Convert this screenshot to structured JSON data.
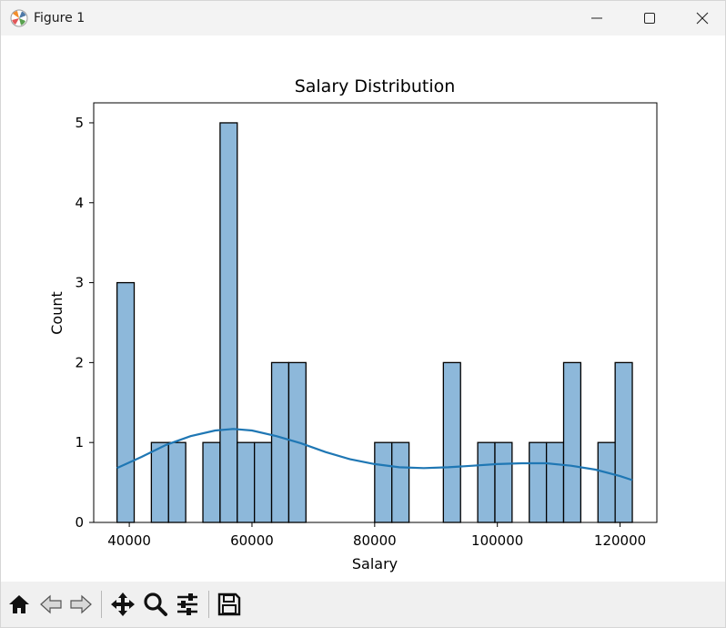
{
  "window": {
    "title": "Figure 1"
  },
  "toolbar": {
    "buttons": [
      {
        "name": "home-icon"
      },
      {
        "name": "back-icon"
      },
      {
        "name": "forward-icon"
      },
      {
        "name": "pan-icon"
      },
      {
        "name": "zoom-icon"
      },
      {
        "name": "configure-subplots-icon"
      },
      {
        "name": "save-icon"
      }
    ]
  },
  "colors": {
    "bar_fill": "#8db8da",
    "bar_edge": "#000000",
    "kde_line": "#1f77b4"
  },
  "chart_data": {
    "type": "bar",
    "title": "Salary Distribution",
    "xlabel": "Salary",
    "ylabel": "Count",
    "xlim": [
      34200,
      126000
    ],
    "ylim": [
      0,
      5.25
    ],
    "xticks": [
      40000,
      60000,
      80000,
      100000,
      120000
    ],
    "xtick_labels": [
      "40000",
      "60000",
      "80000",
      "100000",
      "120000"
    ],
    "yticks": [
      0,
      1,
      2,
      3,
      4,
      5
    ],
    "ytick_labels": [
      "0",
      "1",
      "2",
      "3",
      "4",
      "5"
    ],
    "bin_start": 38000,
    "bin_width": 2800,
    "counts": [
      3,
      0,
      1,
      1,
      0,
      1,
      5,
      1,
      1,
      2,
      2,
      0,
      0,
      0,
      0,
      1,
      1,
      0,
      0,
      2,
      0,
      1,
      1,
      0,
      1,
      1,
      2,
      0,
      1,
      2
    ],
    "kde": {
      "name": "",
      "x": [
        38000,
        42000,
        46000,
        50000,
        54000,
        57000,
        60000,
        64000,
        68000,
        72000,
        76000,
        80000,
        84000,
        88000,
        92000,
        96000,
        100000,
        104000,
        108000,
        112000,
        116000,
        120000,
        122000
      ],
      "y": [
        0.68,
        0.82,
        0.97,
        1.08,
        1.15,
        1.17,
        1.15,
        1.08,
        0.99,
        0.88,
        0.79,
        0.73,
        0.69,
        0.68,
        0.69,
        0.71,
        0.73,
        0.74,
        0.74,
        0.71,
        0.66,
        0.58,
        0.53
      ]
    }
  }
}
